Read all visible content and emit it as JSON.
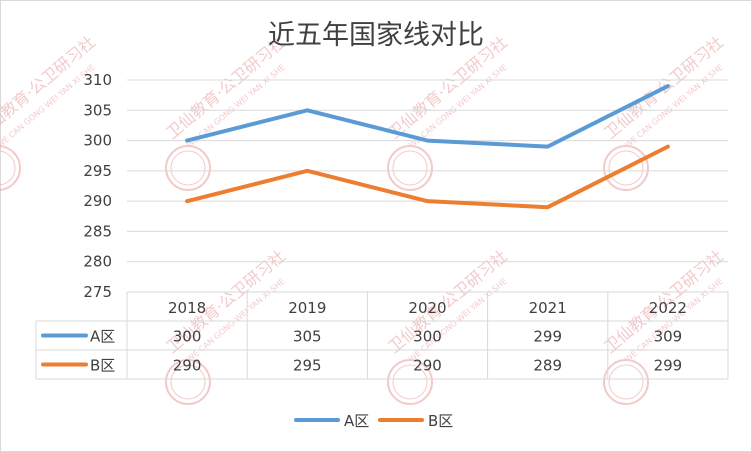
{
  "chart_data": {
    "type": "line",
    "title": "近五年国家线对比",
    "categories": [
      "2018",
      "2019",
      "2020",
      "2021",
      "2022"
    ],
    "series": [
      {
        "name": "A区",
        "values": [
          300,
          305,
          300,
          299,
          309
        ],
        "color": "#5b9bd5"
      },
      {
        "name": "B区",
        "values": [
          290,
          295,
          290,
          289,
          299
        ],
        "color": "#ed7d31"
      }
    ],
    "ylim": [
      275,
      310
    ],
    "yticks": [
      "275",
      "280",
      "285",
      "290",
      "295",
      "300",
      "305",
      "310"
    ],
    "grid": true,
    "legend_position": "bottom",
    "data_table": true
  },
  "watermark": {
    "text": "卫仙教育·公卫研习社",
    "subtext": "WE CAN GONG WEI YAN XI SHE",
    "color": "#e8a0a0"
  }
}
